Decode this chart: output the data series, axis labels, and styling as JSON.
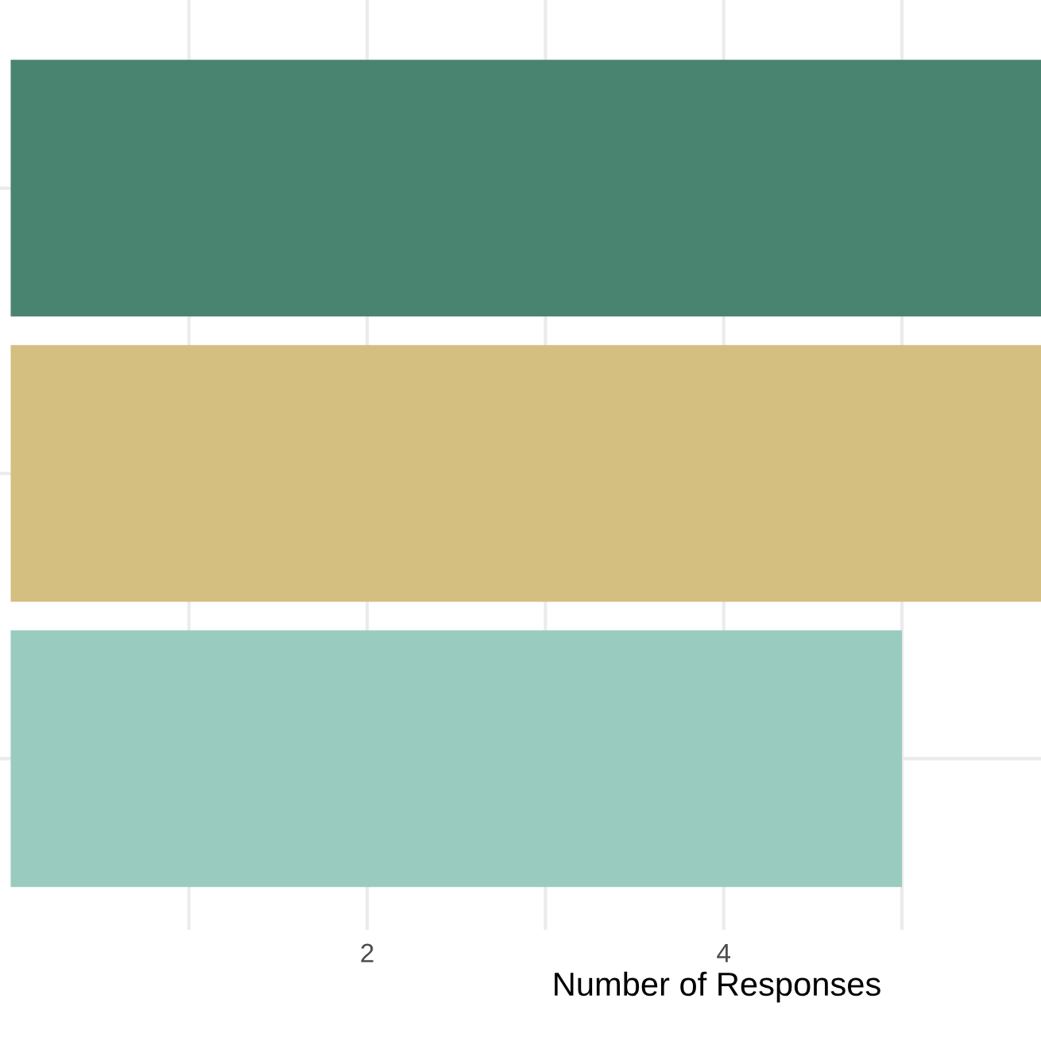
{
  "chart_data": {
    "type": "bar",
    "orientation": "horizontal",
    "xlabel": "Number of Responses",
    "categories": [
      null,
      null,
      null
    ],
    "values": [
      5.78,
      5.78,
      5
    ],
    "colors": [
      "#498470",
      "#d4bf80",
      "#9acbbf"
    ],
    "xlim": [
      -0.06,
      5.78
    ],
    "xticks": [
      {
        "value": 1,
        "label": null
      },
      2,
      {
        "value": 3,
        "label": null
      },
      4,
      {
        "value": 5,
        "label": null
      }
    ],
    "grid": true
  }
}
